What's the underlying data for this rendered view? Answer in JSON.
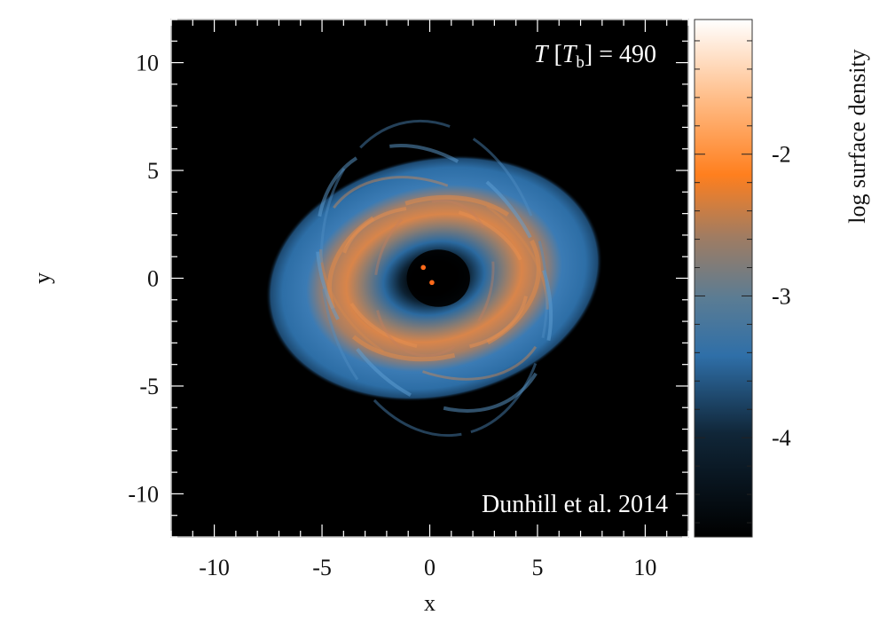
{
  "chart_data": {
    "type": "heatmap",
    "title": "",
    "xlabel": "x",
    "ylabel": "y",
    "xlim": [
      -12,
      12
    ],
    "ylim": [
      -12,
      12
    ],
    "xticks": [
      -10,
      -5,
      0,
      5,
      10
    ],
    "yticks": [
      -10,
      -5,
      0,
      5,
      10
    ],
    "xtick_labels": [
      "-10",
      "-5",
      "0",
      "5",
      "10"
    ],
    "ytick_labels": [
      "-10",
      "-5",
      "0",
      "5",
      "10"
    ],
    "colorbar": {
      "label": "log surface density",
      "range": [
        -4.7,
        -1.05
      ],
      "ticks": [
        -2,
        -3,
        -4
      ],
      "tick_labels": [
        "-2",
        "-3",
        "-4"
      ],
      "colors": [
        "#000000",
        "#2f6fa8",
        "#9a7d66",
        "#ff7f1e",
        "#ffffff"
      ]
    },
    "annotations": {
      "time_symbol": "T",
      "time_unit_open": "[",
      "time_unit_symbol": "T",
      "time_unit_sub": "b",
      "time_unit_close": "]",
      "time_equals": "= 490",
      "credit": "Dunhill et al. 2014"
    },
    "disk": {
      "center": [
        0.2,
        0
      ],
      "outer_semi_axes": [
        7.9,
        5.6
      ],
      "inner_cavity_radius": 1.4,
      "orange_ring_radius": 3.6,
      "tilt_deg": -12
    },
    "points": [
      {
        "x": -0.3,
        "y": 0.5
      },
      {
        "x": 0.1,
        "y": -0.2
      }
    ]
  }
}
